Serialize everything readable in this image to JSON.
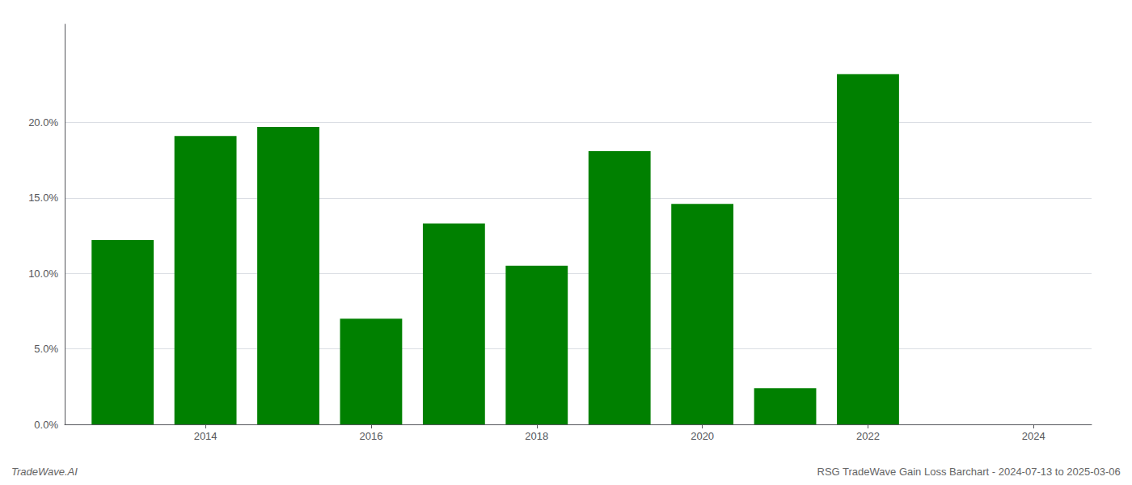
{
  "chart_data": {
    "type": "bar",
    "x": [
      2013,
      2014,
      2015,
      2016,
      2017,
      2018,
      2019,
      2020,
      2021,
      2022
    ],
    "values": [
      0.122,
      0.191,
      0.197,
      0.07,
      0.133,
      0.105,
      0.181,
      0.146,
      0.024,
      0.232
    ],
    "color": "#008000",
    "xlim": [
      2012.3,
      2024.7
    ],
    "xticks": [
      2014,
      2016,
      2018,
      2020,
      2022,
      2024
    ],
    "ylim": [
      0,
      0.265
    ],
    "yticks": [
      {
        "value": 0.0,
        "label": "0.0%"
      },
      {
        "value": 0.05,
        "label": "5.0%"
      },
      {
        "value": 0.1,
        "label": "10.0%"
      },
      {
        "value": 0.15,
        "label": "15.0%"
      },
      {
        "value": 0.2,
        "label": "20.0%"
      }
    ],
    "grid": true,
    "annotations": [
      "TradeWave.AI",
      "RSG TradeWave Gain Loss Barchart - 2024-07-13 to 2025-03-06"
    ]
  }
}
